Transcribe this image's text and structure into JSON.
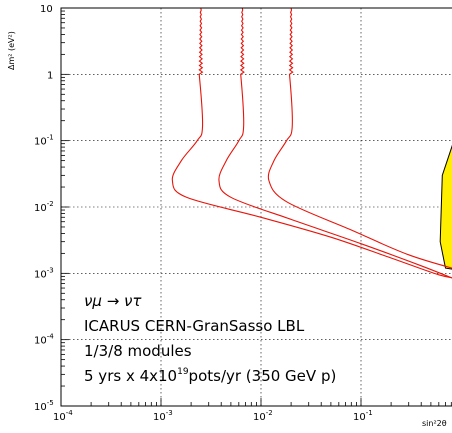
{
  "chart_data": {
    "type": "line",
    "title": "",
    "xlabel": "sin²2θ",
    "ylabel": "Δm² (eV²)",
    "x_scale": "log",
    "y_scale": "log",
    "xlim": [
      0.0001,
      1
    ],
    "ylim": [
      1e-05,
      10
    ],
    "grid": true,
    "x_ticks": [
      {
        "value": 0.0001,
        "base": "10",
        "exp": "-4"
      },
      {
        "value": 0.001,
        "base": "10",
        "exp": "-3"
      },
      {
        "value": 0.01,
        "base": "10",
        "exp": "-2"
      },
      {
        "value": 0.1,
        "base": "10",
        "exp": "-1"
      }
    ],
    "y_ticks": [
      {
        "value": 10,
        "base": "10",
        "exp": ""
      },
      {
        "value": 1,
        "base": "1",
        "exp": ""
      },
      {
        "value": 0.1,
        "base": "10",
        "exp": "-1"
      },
      {
        "value": 0.01,
        "base": "10",
        "exp": "-2"
      },
      {
        "value": 0.001,
        "base": "10",
        "exp": "-3"
      },
      {
        "value": 0.0001,
        "base": "10",
        "exp": "-4"
      },
      {
        "value": 1e-05,
        "base": "10",
        "exp": "-5"
      }
    ],
    "series": [
      {
        "color": "#e8140a",
        "points": [
          [
            0.0025,
            10
          ],
          [
            0.0025,
            1
          ],
          [
            0.0026,
            0.16
          ],
          [
            0.0023,
            0.1
          ],
          [
            0.0016,
            0.05
          ],
          [
            0.0013,
            0.025
          ],
          [
            0.0018,
            0.014
          ],
          [
            0.01,
            0.007
          ],
          [
            0.05,
            0.0035
          ],
          [
            0.2,
            0.0017
          ],
          [
            0.6,
            0.00095
          ],
          [
            1,
            0.00082
          ]
        ]
      },
      {
        "color": "#e8140a",
        "points": [
          [
            0.0065,
            10
          ],
          [
            0.0065,
            1
          ],
          [
            0.0067,
            0.16
          ],
          [
            0.006,
            0.1
          ],
          [
            0.0045,
            0.05
          ],
          [
            0.0038,
            0.025
          ],
          [
            0.005,
            0.014
          ],
          [
            0.02,
            0.0065
          ],
          [
            0.1,
            0.0028
          ],
          [
            0.4,
            0.0013
          ],
          [
            1,
            0.00075
          ]
        ]
      },
      {
        "color": "#e8140a",
        "points": [
          [
            0.02,
            10
          ],
          [
            0.02,
            1
          ],
          [
            0.0205,
            0.16
          ],
          [
            0.018,
            0.1
          ],
          [
            0.0135,
            0.05
          ],
          [
            0.012,
            0.025
          ],
          [
            0.018,
            0.012
          ],
          [
            0.08,
            0.0045
          ],
          [
            0.3,
            0.0019
          ],
          [
            1,
            0.0011
          ]
        ]
      }
    ],
    "region": {
      "fill": "#ffee00",
      "points": [
        [
          1,
          0.1
        ],
        [
          0.85,
          0.1
        ],
        [
          0.65,
          0.03
        ],
        [
          0.62,
          0.003
        ],
        [
          0.7,
          0.0012
        ],
        [
          1,
          0.0011
        ]
      ]
    },
    "annotations": [
      "νμ → ντ",
      "ICARUS CERN-GranSasso LBL",
      "1/3/8 modules",
      "5 yrs x 4x10",
      "19",
      "pots/yr (350 GeV p)"
    ]
  }
}
